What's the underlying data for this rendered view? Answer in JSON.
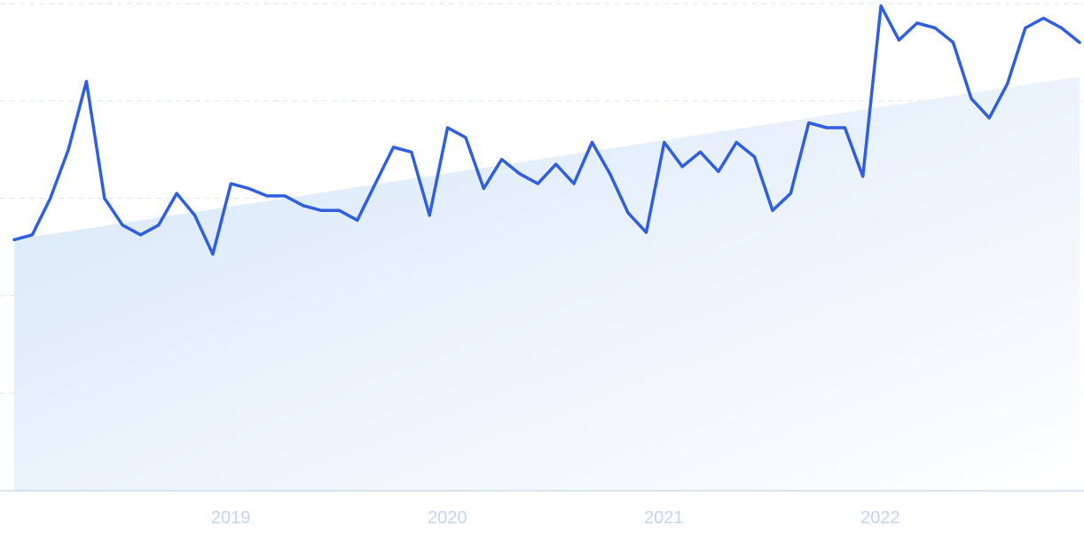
{
  "chart_data": {
    "type": "line",
    "title": "",
    "xlabel": "",
    "ylabel": "",
    "x_tick_labels": [
      "2019",
      "2020",
      "2021",
      "2022"
    ],
    "x_tick_values": [
      2019,
      2020,
      2021,
      2022
    ],
    "xlim": [
      2018.0,
      2022.92
    ],
    "ylim": [
      0,
      100
    ],
    "grid": true,
    "grid_style": "dashed horizontal",
    "legend": "none",
    "colors": {
      "line": "#2f5fe0",
      "area_top": "#d6e6f9",
      "area_bottom": "#ffffff",
      "grid": "#dce6f0",
      "tick_label": "#c3d6f5"
    },
    "series": [
      {
        "values": [
          51.5,
          52.5,
          60,
          70,
          84,
          60,
          54.5,
          52.5,
          54.5,
          61,
          56.5,
          48.5,
          63,
          62,
          60.5,
          60.5,
          58.5,
          57.5,
          57.5,
          55.5,
          63,
          70.5,
          69.5,
          56.5,
          74.5,
          72.5,
          62,
          68,
          65,
          63,
          67,
          63,
          71.5,
          65,
          57,
          53,
          71.5,
          66.5,
          69.5,
          65.5,
          71.5,
          68.5,
          57.5,
          61,
          75.5,
          74.5,
          74.5,
          64.5,
          99.5,
          92.5,
          96,
          95,
          92,
          80.5,
          76.5,
          83.5,
          95,
          97,
          95,
          92
        ]
      }
    ],
    "trend": {
      "start": 51.5,
      "end": 85
    }
  }
}
